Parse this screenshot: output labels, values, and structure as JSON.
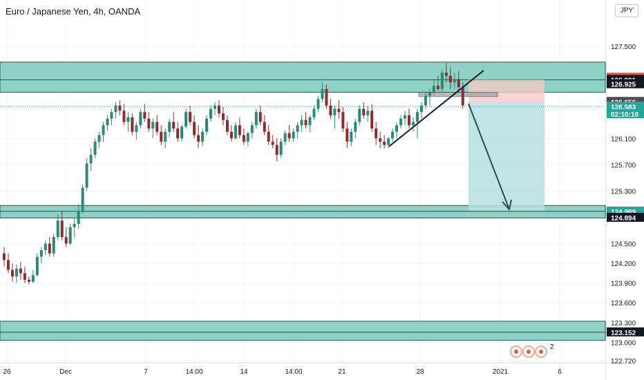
{
  "header": {
    "title": "Euro / Japanese Yen, 4h, OANDA",
    "currency_button": "JPY"
  },
  "colors": {
    "background": "#ffffff",
    "zone_fill": "#8fd1c6",
    "zone_border": "#1b5e4f",
    "bull": "#2a8a78",
    "bear": "#8e2c2c",
    "grid": "#f0f3fa",
    "axis_text": "#131722",
    "tag_red": "#e8533f",
    "tag_green": "#26a69a",
    "tag_black": "#131722",
    "tag_gray": "#4a4e59",
    "stop_fill": "#f3c9c6",
    "target_fill": "#b7dfe0",
    "trend_line": "#131722",
    "arrow": "#2b4a5a"
  },
  "events": {
    "count": "2"
  },
  "chart_data": {
    "type": "candlestick",
    "symbol": "Euro / Japanese Yen",
    "interval": "4h",
    "source": "OANDA",
    "ylim": [
      122.72,
      128.05
    ],
    "y_ticks": [
      "127.500",
      "126.100",
      "125.700",
      "125.300",
      "124.500",
      "124.200",
      "123.900",
      "123.600",
      "123.300",
      "123.000",
      "122.720"
    ],
    "y_tick_values": [
      127.5,
      126.1,
      125.7,
      125.3,
      124.5,
      124.2,
      123.9,
      123.6,
      123.3,
      123.0,
      122.72
    ],
    "x_ticks": [
      "26",
      "Dec",
      "7",
      "14:00",
      "14",
      "14:00",
      "21",
      "28",
      "2021",
      "6"
    ],
    "price_labels": [
      {
        "text": "127.025",
        "value": 127.025,
        "style": "red"
      },
      {
        "text": "126.991",
        "value": 126.991,
        "style": "black"
      },
      {
        "text": "126.925",
        "value": 126.925,
        "style": "black"
      },
      {
        "text": "126.656",
        "value": 126.656,
        "style": "gray"
      },
      {
        "text": "126.583",
        "value": 126.583,
        "style": "green"
      },
      {
        "text": "02:10:10",
        "value": 126.47,
        "style": "green"
      },
      {
        "text": "124.989",
        "value": 124.989,
        "style": "green"
      },
      {
        "text": "124.894",
        "value": 124.894,
        "style": "black"
      },
      {
        "text": "123.152",
        "value": 123.152,
        "style": "black"
      }
    ],
    "zones": [
      {
        "from": 126.99,
        "to": 127.26
      },
      {
        "from": 126.8,
        "to": 126.99
      },
      {
        "from": 124.99,
        "to": 125.08
      },
      {
        "from": 124.89,
        "to": 124.99
      },
      {
        "from": 123.152,
        "to": 123.32
      },
      {
        "from": 123.03,
        "to": 123.152
      }
    ],
    "current_price": 126.583,
    "short_position": {
      "entry": 126.656,
      "stop": 126.99,
      "target": 125.0
    },
    "candles": [
      {
        "o": 124.35,
        "h": 124.45,
        "l": 124.15,
        "c": 124.25
      },
      {
        "o": 124.25,
        "h": 124.35,
        "l": 124.05,
        "c": 124.1
      },
      {
        "o": 124.1,
        "h": 124.2,
        "l": 123.92,
        "c": 124.0
      },
      {
        "o": 124.0,
        "h": 124.18,
        "l": 123.9,
        "c": 124.12
      },
      {
        "o": 124.12,
        "h": 124.22,
        "l": 123.95,
        "c": 124.05
      },
      {
        "o": 124.05,
        "h": 124.15,
        "l": 123.9,
        "c": 123.95
      },
      {
        "o": 123.95,
        "h": 124.0,
        "l": 123.88,
        "c": 123.92
      },
      {
        "o": 123.92,
        "h": 124.1,
        "l": 123.9,
        "c": 124.02
      },
      {
        "o": 124.02,
        "h": 124.35,
        "l": 124.0,
        "c": 124.3
      },
      {
        "o": 124.3,
        "h": 124.45,
        "l": 124.2,
        "c": 124.4
      },
      {
        "o": 124.4,
        "h": 124.55,
        "l": 124.32,
        "c": 124.5
      },
      {
        "o": 124.5,
        "h": 124.6,
        "l": 124.3,
        "c": 124.35
      },
      {
        "o": 124.35,
        "h": 124.65,
        "l": 124.3,
        "c": 124.6
      },
      {
        "o": 124.6,
        "h": 124.95,
        "l": 124.55,
        "c": 124.85
      },
      {
        "o": 124.85,
        "h": 125.0,
        "l": 124.55,
        "c": 124.6
      },
      {
        "o": 124.6,
        "h": 124.75,
        "l": 124.45,
        "c": 124.5
      },
      {
        "o": 124.5,
        "h": 124.8,
        "l": 124.48,
        "c": 124.75
      },
      {
        "o": 124.75,
        "h": 124.9,
        "l": 124.6,
        "c": 124.8
      },
      {
        "o": 124.8,
        "h": 125.1,
        "l": 124.72,
        "c": 125.0
      },
      {
        "o": 125.0,
        "h": 125.4,
        "l": 124.95,
        "c": 125.35
      },
      {
        "o": 125.35,
        "h": 125.8,
        "l": 125.3,
        "c": 125.72
      },
      {
        "o": 125.72,
        "h": 125.95,
        "l": 125.6,
        "c": 125.85
      },
      {
        "o": 125.85,
        "h": 126.1,
        "l": 125.8,
        "c": 126.05
      },
      {
        "o": 126.05,
        "h": 126.2,
        "l": 125.95,
        "c": 126.15
      },
      {
        "o": 126.15,
        "h": 126.35,
        "l": 126.05,
        "c": 126.3
      },
      {
        "o": 126.3,
        "h": 126.45,
        "l": 126.22,
        "c": 126.4
      },
      {
        "o": 126.4,
        "h": 126.55,
        "l": 126.3,
        "c": 126.5
      },
      {
        "o": 126.5,
        "h": 126.65,
        "l": 126.4,
        "c": 126.6
      },
      {
        "o": 126.6,
        "h": 126.68,
        "l": 126.45,
        "c": 126.52
      },
      {
        "o": 126.52,
        "h": 126.62,
        "l": 126.3,
        "c": 126.35
      },
      {
        "o": 126.35,
        "h": 126.5,
        "l": 126.2,
        "c": 126.42
      },
      {
        "o": 126.42,
        "h": 126.48,
        "l": 126.15,
        "c": 126.2
      },
      {
        "o": 126.2,
        "h": 126.35,
        "l": 126.08,
        "c": 126.3
      },
      {
        "o": 126.3,
        "h": 126.55,
        "l": 126.25,
        "c": 126.5
      },
      {
        "o": 126.5,
        "h": 126.62,
        "l": 126.35,
        "c": 126.4
      },
      {
        "o": 126.4,
        "h": 126.5,
        "l": 126.2,
        "c": 126.25
      },
      {
        "o": 126.25,
        "h": 126.4,
        "l": 126.1,
        "c": 126.35
      },
      {
        "o": 126.35,
        "h": 126.45,
        "l": 126.15,
        "c": 126.2
      },
      {
        "o": 126.2,
        "h": 126.3,
        "l": 126.0,
        "c": 126.05
      },
      {
        "o": 126.05,
        "h": 126.25,
        "l": 125.95,
        "c": 126.2
      },
      {
        "o": 126.2,
        "h": 126.4,
        "l": 126.12,
        "c": 126.35
      },
      {
        "o": 126.35,
        "h": 126.5,
        "l": 126.2,
        "c": 126.25
      },
      {
        "o": 126.25,
        "h": 126.35,
        "l": 126.05,
        "c": 126.1
      },
      {
        "o": 126.1,
        "h": 126.3,
        "l": 126.05,
        "c": 126.28
      },
      {
        "o": 126.28,
        "h": 126.55,
        "l": 126.25,
        "c": 126.5
      },
      {
        "o": 126.5,
        "h": 126.6,
        "l": 126.3,
        "c": 126.35
      },
      {
        "o": 126.35,
        "h": 126.45,
        "l": 126.1,
        "c": 126.15
      },
      {
        "o": 126.15,
        "h": 126.3,
        "l": 125.95,
        "c": 126.05
      },
      {
        "o": 126.05,
        "h": 126.25,
        "l": 125.98,
        "c": 126.2
      },
      {
        "o": 126.2,
        "h": 126.45,
        "l": 126.15,
        "c": 126.4
      },
      {
        "o": 126.4,
        "h": 126.6,
        "l": 126.35,
        "c": 126.55
      },
      {
        "o": 126.55,
        "h": 126.65,
        "l": 126.45,
        "c": 126.6
      },
      {
        "o": 126.6,
        "h": 126.68,
        "l": 126.42,
        "c": 126.48
      },
      {
        "o": 126.48,
        "h": 126.58,
        "l": 126.3,
        "c": 126.38
      },
      {
        "o": 126.38,
        "h": 126.45,
        "l": 126.15,
        "c": 126.2
      },
      {
        "o": 126.2,
        "h": 126.3,
        "l": 126.05,
        "c": 126.1
      },
      {
        "o": 126.1,
        "h": 126.35,
        "l": 126.08,
        "c": 126.3
      },
      {
        "o": 126.3,
        "h": 126.42,
        "l": 126.1,
        "c": 126.15
      },
      {
        "o": 126.15,
        "h": 126.25,
        "l": 126.0,
        "c": 126.05
      },
      {
        "o": 126.05,
        "h": 126.2,
        "l": 125.98,
        "c": 126.18
      },
      {
        "o": 126.18,
        "h": 126.35,
        "l": 126.1,
        "c": 126.3
      },
      {
        "o": 126.3,
        "h": 126.55,
        "l": 126.25,
        "c": 126.5
      },
      {
        "o": 126.5,
        "h": 126.6,
        "l": 126.3,
        "c": 126.35
      },
      {
        "o": 126.35,
        "h": 126.45,
        "l": 126.15,
        "c": 126.2
      },
      {
        "o": 126.2,
        "h": 126.3,
        "l": 126.0,
        "c": 126.05
      },
      {
        "o": 126.05,
        "h": 126.15,
        "l": 125.95,
        "c": 126.0
      },
      {
        "o": 126.0,
        "h": 126.1,
        "l": 125.75,
        "c": 125.85
      },
      {
        "o": 125.85,
        "h": 126.1,
        "l": 125.8,
        "c": 126.05
      },
      {
        "o": 126.05,
        "h": 126.22,
        "l": 126.0,
        "c": 126.18
      },
      {
        "o": 126.18,
        "h": 126.3,
        "l": 126.05,
        "c": 126.1
      },
      {
        "o": 126.1,
        "h": 126.25,
        "l": 126.05,
        "c": 126.2
      },
      {
        "o": 126.2,
        "h": 126.35,
        "l": 126.1,
        "c": 126.3
      },
      {
        "o": 126.3,
        "h": 126.45,
        "l": 126.2,
        "c": 126.38
      },
      {
        "o": 126.38,
        "h": 126.5,
        "l": 126.25,
        "c": 126.3
      },
      {
        "o": 126.3,
        "h": 126.45,
        "l": 126.2,
        "c": 126.42
      },
      {
        "o": 126.42,
        "h": 126.6,
        "l": 126.38,
        "c": 126.55
      },
      {
        "o": 126.55,
        "h": 126.75,
        "l": 126.5,
        "c": 126.7
      },
      {
        "o": 126.7,
        "h": 126.95,
        "l": 126.65,
        "c": 126.85
      },
      {
        "o": 126.85,
        "h": 126.92,
        "l": 126.55,
        "c": 126.6
      },
      {
        "o": 126.6,
        "h": 126.7,
        "l": 126.4,
        "c": 126.45
      },
      {
        "o": 126.45,
        "h": 126.6,
        "l": 126.25,
        "c": 126.55
      },
      {
        "o": 126.55,
        "h": 126.68,
        "l": 126.4,
        "c": 126.5
      },
      {
        "o": 126.5,
        "h": 126.58,
        "l": 126.2,
        "c": 126.25
      },
      {
        "o": 126.25,
        "h": 126.35,
        "l": 125.95,
        "c": 126.05
      },
      {
        "o": 126.05,
        "h": 126.25,
        "l": 125.98,
        "c": 126.2
      },
      {
        "o": 126.2,
        "h": 126.4,
        "l": 126.1,
        "c": 126.35
      },
      {
        "o": 126.35,
        "h": 126.6,
        "l": 126.3,
        "c": 126.55
      },
      {
        "o": 126.55,
        "h": 126.65,
        "l": 126.4,
        "c": 126.45
      },
      {
        "o": 126.45,
        "h": 126.6,
        "l": 126.35,
        "c": 126.52
      },
      {
        "o": 126.52,
        "h": 126.62,
        "l": 126.2,
        "c": 126.25
      },
      {
        "o": 126.25,
        "h": 126.35,
        "l": 126.0,
        "c": 126.1
      },
      {
        "o": 126.1,
        "h": 126.2,
        "l": 125.95,
        "c": 126.05
      },
      {
        "o": 126.05,
        "h": 126.15,
        "l": 125.95,
        "c": 126.0
      },
      {
        "o": 126.0,
        "h": 126.12,
        "l": 125.95,
        "c": 126.1
      },
      {
        "o": 126.1,
        "h": 126.25,
        "l": 126.05,
        "c": 126.2
      },
      {
        "o": 126.2,
        "h": 126.35,
        "l": 126.1,
        "c": 126.3
      },
      {
        "o": 126.3,
        "h": 126.45,
        "l": 126.25,
        "c": 126.4
      },
      {
        "o": 126.4,
        "h": 126.52,
        "l": 126.3,
        "c": 126.45
      },
      {
        "o": 126.45,
        "h": 126.55,
        "l": 126.25,
        "c": 126.3
      },
      {
        "o": 126.3,
        "h": 126.42,
        "l": 126.2,
        "c": 126.35
      },
      {
        "o": 126.35,
        "h": 126.55,
        "l": 126.1,
        "c": 126.5
      },
      {
        "o": 126.5,
        "h": 126.65,
        "l": 126.4,
        "c": 126.6
      },
      {
        "o": 126.6,
        "h": 126.8,
        "l": 126.55,
        "c": 126.75
      },
      {
        "o": 126.75,
        "h": 126.85,
        "l": 126.6,
        "c": 126.8
      },
      {
        "o": 126.8,
        "h": 127.0,
        "l": 126.75,
        "c": 126.9
      },
      {
        "o": 126.9,
        "h": 127.05,
        "l": 126.82,
        "c": 126.85
      },
      {
        "o": 126.85,
        "h": 127.15,
        "l": 126.8,
        "c": 127.1
      },
      {
        "o": 127.1,
        "h": 127.25,
        "l": 126.95,
        "c": 127.05
      },
      {
        "o": 127.05,
        "h": 127.18,
        "l": 126.85,
        "c": 126.95
      },
      {
        "o": 126.95,
        "h": 127.1,
        "l": 126.85,
        "c": 127.0
      },
      {
        "o": 127.0,
        "h": 127.12,
        "l": 126.8,
        "c": 126.88
      },
      {
        "o": 126.88,
        "h": 126.95,
        "l": 126.55,
        "c": 126.6
      }
    ],
    "x_candle_start": 6,
    "x_candle_step": 5.98
  }
}
